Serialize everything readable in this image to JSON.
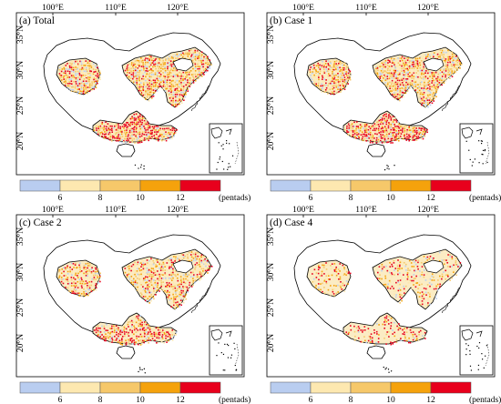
{
  "figure": {
    "lon_ticks": [
      "100°E",
      "110°E",
      "120°E"
    ],
    "lat_ticks": [
      "35°N",
      "30°N",
      "25°N",
      "20°N"
    ],
    "colorbar": {
      "ticks": [
        "6",
        "8",
        "10",
        "12"
      ],
      "unit": "(pentads)",
      "colors": [
        "#b9cdf0",
        "#fde8b0",
        "#f6c86a",
        "#f5a20c",
        "#e8001c"
      ]
    },
    "panels": [
      {
        "title": "(a) Total",
        "dot_density": 1.0
      },
      {
        "title": "(b) Case 1",
        "dot_density": 0.95
      },
      {
        "title": "(c) Case 2",
        "dot_density": 0.75
      },
      {
        "title": "(d) Case 4",
        "dot_density": 0.35
      }
    ]
  }
}
